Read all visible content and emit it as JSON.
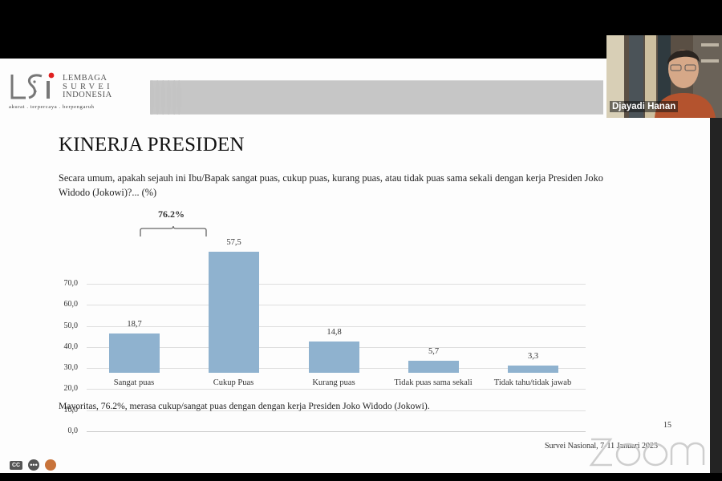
{
  "meeting": {
    "app": "Zoom",
    "watermark": "zoom",
    "participant_name": "Djayadi Hanan",
    "controls": [
      {
        "name": "captions",
        "label": "CC"
      },
      {
        "name": "more",
        "label": "•••"
      },
      {
        "name": "reactions",
        "label": ""
      }
    ]
  },
  "slide": {
    "logo": {
      "mark": "LSI",
      "lines": [
        "LEMBAGA",
        "SURVEI",
        "INDONESIA"
      ],
      "tagline": "akurat . terpercaya . berpengaruh"
    },
    "title": "KINERJA PRESIDEN",
    "question": "Secara umum, apakah sejauh ini Ibu/Bapak sangat puas, cukup puas, kurang puas, atau tidak puas sama sekali dengan kerja Presiden Joko Widodo (Jokowi)?... (%)",
    "note": "Mayoritas, 76.2%, merasa cukup/sangat puas dengan dengan kerja Presiden Joko Widodo (Jokowi).",
    "page_number": "15",
    "footer": "Survei Nasional, 7-11 Januari 2023",
    "colors": {
      "bar": "#8fb2cf",
      "header_band": "#c6c6c6",
      "logo_dot": "#e02020"
    }
  },
  "chart_data": {
    "type": "bar",
    "title": "KINERJA PRESIDEN",
    "categories": [
      "Sangat puas",
      "Cukup Puas",
      "Kurang puas",
      "Tidak puas sama sekali",
      "Tidak tahu/tidak jawab"
    ],
    "values": [
      18.7,
      57.5,
      14.8,
      5.7,
      3.3
    ],
    "value_labels": [
      "18,7",
      "57,5",
      "14,8",
      "5,7",
      "3,3"
    ],
    "yticks": [
      "0,0",
      "10,0",
      "20,0",
      "30,0",
      "40,0",
      "50,0",
      "60,0",
      "70,0"
    ],
    "ylim": [
      0,
      70
    ],
    "xlabel": "",
    "ylabel": "%",
    "grid": true,
    "annotation": {
      "label": "76.2%",
      "spans": [
        "Sangat puas",
        "Cukup Puas"
      ]
    }
  }
}
